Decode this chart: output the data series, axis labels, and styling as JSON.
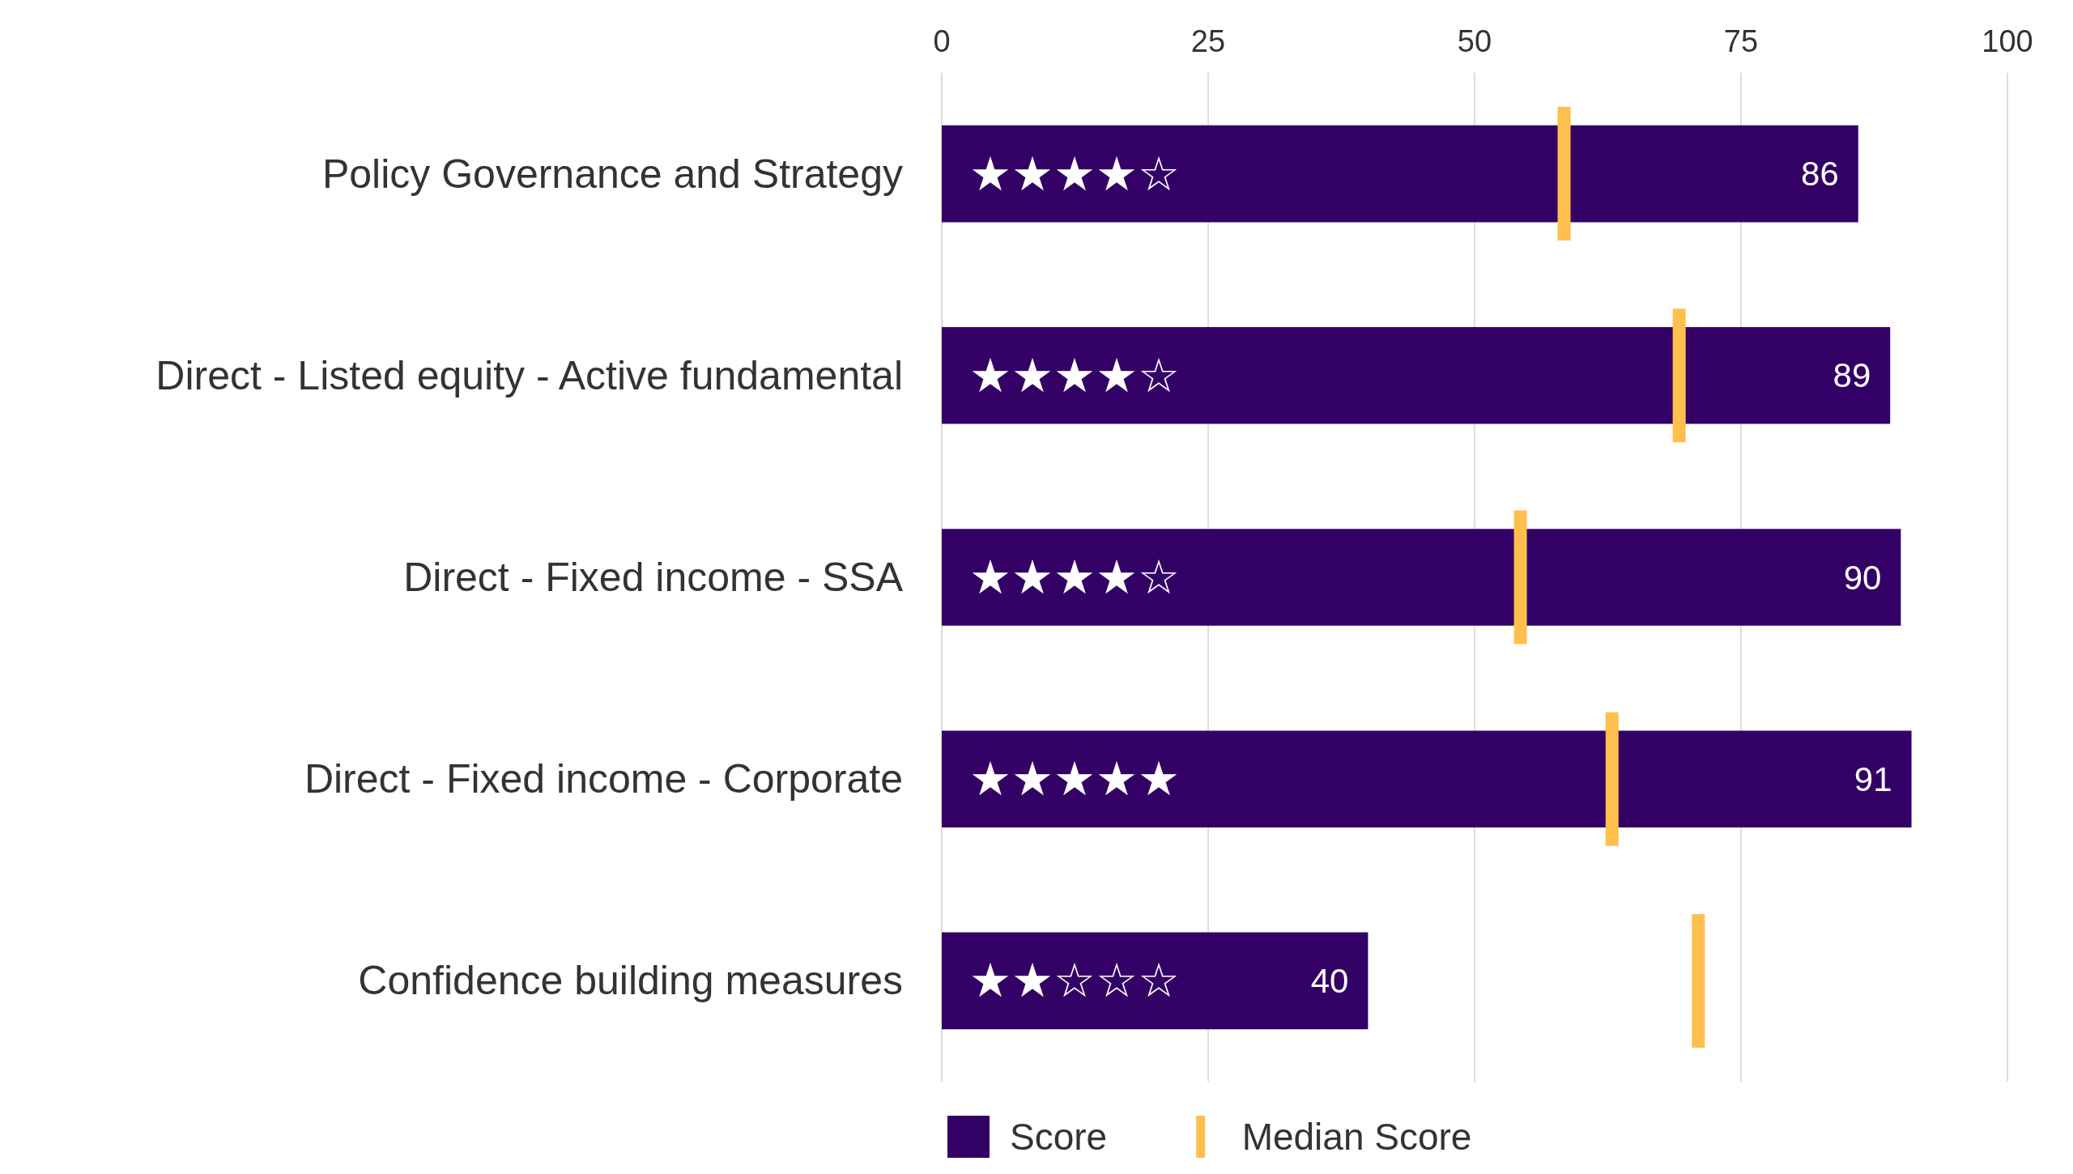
{
  "chart_data": {
    "type": "bar",
    "orientation": "horizontal",
    "categories": [
      "Policy Governance and Strategy",
      "Direct - Listed equity - Active fundamental",
      "Direct - Fixed income - SSA",
      "Direct - Fixed income - Corporate",
      "Confidence building measures"
    ],
    "series": [
      {
        "name": "Score",
        "color": "#330066",
        "values": [
          86,
          89,
          90,
          91,
          40
        ],
        "value_labels": [
          "86",
          "89",
          "90",
          "91",
          "40"
        ]
      },
      {
        "name": "Median Score",
        "type": "box",
        "color": "#ffbf4d",
        "boxes": [
          {
            "low": 58.4,
            "q1": 58.4,
            "median": 58.4,
            "q3": 58.4,
            "high": 58.4
          },
          {
            "low": 69.2,
            "q1": 69.2,
            "median": 69.2,
            "q3": 69.2,
            "high": 69.2
          },
          {
            "low": 54.3,
            "q1": 54.3,
            "median": 54.3,
            "q3": 54.3,
            "high": 54.3
          },
          {
            "low": 62.9,
            "q1": 62.9,
            "median": 62.9,
            "q3": 62.9,
            "high": 62.9
          },
          {
            "low": 71.0,
            "q1": 71.0,
            "median": 71.0,
            "q3": 71.0,
            "high": 71.0
          }
        ]
      }
    ],
    "xlim": [
      0,
      100
    ],
    "xticks": [
      0,
      25,
      50,
      75,
      100
    ],
    "grid": "x",
    "legend": "bottom",
    "annotations": [
      "★★★★☆",
      "★★★★☆",
      "★★★★☆",
      "★★★★★",
      "★★☆☆☆"
    ]
  }
}
